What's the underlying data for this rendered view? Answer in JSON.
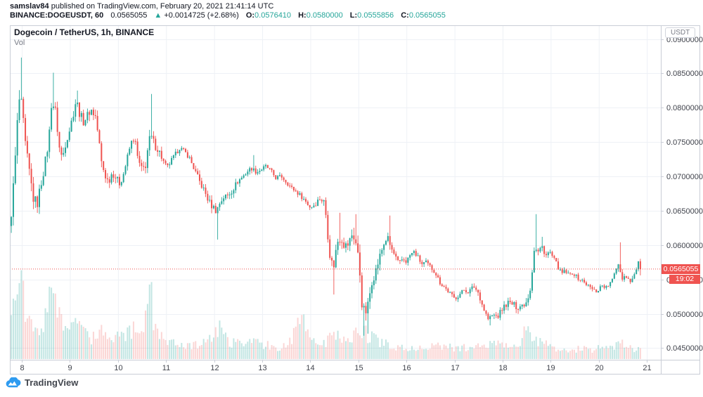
{
  "header": {
    "username": "samslav84",
    "published_suffix": " published on TradingView.com, February 20, 2021 21:41:14 UTC",
    "symbol_interval": "BINANCE:DOGEUSDT, 60",
    "last_price": "0.0565055",
    "arrow": "▲",
    "change": "+0.0014725 (+2.68%)",
    "o_label": "O:",
    "o_value": "0.0576410",
    "h_label": "H:",
    "h_value": "0.0580000",
    "l_label": "L:",
    "l_value": "0.0555856",
    "c_label": "C:",
    "c_value": "0.0565055"
  },
  "legend": {
    "title": "Dogecoin / TetherUS, 1h, BINANCE",
    "indicator": "Vol"
  },
  "axis": {
    "currency_badge": "USDT",
    "price_badge": "0.0565055",
    "countdown": "19:02"
  },
  "footer": {
    "logo_text": "TradingView",
    "logo_icon": "tradingview-cloud-icon"
  },
  "colors": {
    "up": "#26a69a",
    "down": "#ef5350",
    "vol_up": "rgba(38,166,154,0.28)",
    "vol_down": "rgba(239,83,80,0.24)",
    "grid": "#eef1f6",
    "frame": "#c9cdd6",
    "axis_text": "#40434c",
    "price_line": "#ef5350",
    "badge_bg": "#ef5350",
    "logo_blue": "#2e9bf0"
  },
  "chart_data": {
    "type": "candlestick",
    "title": "Dogecoin / TetherUS, 1h, BINANCE",
    "symbol": "BINANCE:DOGEUSDT",
    "interval": "60",
    "candles_per_day": 24,
    "x_axis": {
      "min_day": 7.75,
      "max_day": 21.29,
      "tick_days": [
        8,
        9,
        10,
        11,
        12,
        13,
        14,
        15,
        16,
        17,
        18,
        19,
        20,
        21
      ],
      "tick_labels": [
        "8",
        "9",
        "10",
        "11",
        "12",
        "13",
        "14",
        "15",
        "16",
        "17",
        "18",
        "19",
        "20",
        "21"
      ]
    },
    "y_axis": {
      "min": 0.0433,
      "max": 0.092,
      "ticks": [
        0.09,
        0.085,
        0.08,
        0.075,
        0.07,
        0.065,
        0.06,
        0.055,
        0.05,
        0.045
      ],
      "tick_labels": [
        "0.0900000",
        "0.0850000",
        "0.0800000",
        "0.0750000",
        "0.0700000",
        "0.0650000",
        "0.0600000",
        "0.0550000",
        "0.0500000",
        "0.0450000"
      ]
    },
    "last_price": 0.0565055,
    "last_candle": {
      "open": 0.057641,
      "high": 0.058,
      "low": 0.0555856,
      "close": 0.0565055
    },
    "price_path": [
      [
        7.76,
        0.0622
      ],
      [
        7.82,
        0.066
      ],
      [
        7.88,
        0.0722
      ],
      [
        7.93,
        0.078
      ],
      [
        7.97,
        0.0812
      ],
      [
        8.02,
        0.08
      ],
      [
        8.1,
        0.074
      ],
      [
        8.18,
        0.0705
      ],
      [
        8.26,
        0.0668
      ],
      [
        8.34,
        0.066
      ],
      [
        8.42,
        0.069
      ],
      [
        8.5,
        0.0718
      ],
      [
        8.58,
        0.0752
      ],
      [
        8.64,
        0.081
      ],
      [
        8.72,
        0.0795
      ],
      [
        8.8,
        0.0742
      ],
      [
        8.86,
        0.0726
      ],
      [
        8.94,
        0.0752
      ],
      [
        9.02,
        0.077
      ],
      [
        9.08,
        0.0788
      ],
      [
        9.15,
        0.0812
      ],
      [
        9.22,
        0.0792
      ],
      [
        9.3,
        0.078
      ],
      [
        9.38,
        0.0788
      ],
      [
        9.45,
        0.0798
      ],
      [
        9.55,
        0.0788
      ],
      [
        9.62,
        0.0755
      ],
      [
        9.67,
        0.0722
      ],
      [
        9.75,
        0.0702
      ],
      [
        9.82,
        0.0692
      ],
      [
        9.9,
        0.0706
      ],
      [
        9.98,
        0.0698
      ],
      [
        10.05,
        0.069
      ],
      [
        10.12,
        0.07
      ],
      [
        10.2,
        0.0722
      ],
      [
        10.28,
        0.0746
      ],
      [
        10.36,
        0.0758
      ],
      [
        10.44,
        0.0722
      ],
      [
        10.52,
        0.0708
      ],
      [
        10.6,
        0.0718
      ],
      [
        10.66,
        0.0752
      ],
      [
        10.72,
        0.0756
      ],
      [
        10.8,
        0.0744
      ],
      [
        10.88,
        0.0736
      ],
      [
        10.96,
        0.0722
      ],
      [
        11.04,
        0.0712
      ],
      [
        11.12,
        0.0722
      ],
      [
        11.2,
        0.073
      ],
      [
        11.3,
        0.0742
      ],
      [
        11.4,
        0.0736
      ],
      [
        11.5,
        0.0728
      ],
      [
        11.62,
        0.0708
      ],
      [
        11.72,
        0.0692
      ],
      [
        11.82,
        0.0678
      ],
      [
        11.92,
        0.0662
      ],
      [
        12.0,
        0.0655
      ],
      [
        12.07,
        0.065
      ],
      [
        12.14,
        0.0662
      ],
      [
        12.22,
        0.067
      ],
      [
        12.3,
        0.0672
      ],
      [
        12.4,
        0.068
      ],
      [
        12.5,
        0.0692
      ],
      [
        12.62,
        0.07
      ],
      [
        12.72,
        0.0708
      ],
      [
        12.8,
        0.0712
      ],
      [
        12.9,
        0.0706
      ],
      [
        13.0,
        0.071
      ],
      [
        13.1,
        0.0715
      ],
      [
        13.2,
        0.0708
      ],
      [
        13.3,
        0.0698
      ],
      [
        13.42,
        0.07
      ],
      [
        13.52,
        0.0692
      ],
      [
        13.62,
        0.0684
      ],
      [
        13.72,
        0.0678
      ],
      [
        13.82,
        0.0672
      ],
      [
        13.92,
        0.0664
      ],
      [
        14.02,
        0.0655
      ],
      [
        14.12,
        0.066
      ],
      [
        14.22,
        0.0668
      ],
      [
        14.32,
        0.0662
      ],
      [
        14.42,
        0.0588
      ],
      [
        14.5,
        0.0566
      ],
      [
        14.58,
        0.0605
      ],
      [
        14.66,
        0.0612
      ],
      [
        14.74,
        0.0598
      ],
      [
        14.82,
        0.0602
      ],
      [
        14.9,
        0.0618
      ],
      [
        14.98,
        0.06
      ],
      [
        15.04,
        0.057
      ],
      [
        15.1,
        0.051
      ],
      [
        15.16,
        0.05
      ],
      [
        15.22,
        0.0512
      ],
      [
        15.3,
        0.0548
      ],
      [
        15.38,
        0.0562
      ],
      [
        15.46,
        0.0582
      ],
      [
        15.54,
        0.06
      ],
      [
        15.62,
        0.0612
      ],
      [
        15.7,
        0.0595
      ],
      [
        15.78,
        0.0584
      ],
      [
        15.86,
        0.0572
      ],
      [
        15.94,
        0.058
      ],
      [
        16.02,
        0.0576
      ],
      [
        16.1,
        0.0586
      ],
      [
        16.18,
        0.059
      ],
      [
        16.26,
        0.0582
      ],
      [
        16.34,
        0.0572
      ],
      [
        16.42,
        0.0575
      ],
      [
        16.52,
        0.0568
      ],
      [
        16.62,
        0.056
      ],
      [
        16.72,
        0.0545
      ],
      [
        16.82,
        0.0538
      ],
      [
        16.92,
        0.053
      ],
      [
        17.02,
        0.0522
      ],
      [
        17.12,
        0.0528
      ],
      [
        17.22,
        0.0535
      ],
      [
        17.32,
        0.0532
      ],
      [
        17.42,
        0.054
      ],
      [
        17.52,
        0.053
      ],
      [
        17.62,
        0.0508
      ],
      [
        17.72,
        0.0492
      ],
      [
        17.82,
        0.0498
      ],
      [
        17.92,
        0.0496
      ],
      [
        18.02,
        0.0508
      ],
      [
        18.12,
        0.0516
      ],
      [
        18.22,
        0.0514
      ],
      [
        18.32,
        0.051
      ],
      [
        18.42,
        0.0512
      ],
      [
        18.52,
        0.0518
      ],
      [
        18.6,
        0.0538
      ],
      [
        18.68,
        0.0596
      ],
      [
        18.76,
        0.059
      ],
      [
        18.84,
        0.0598
      ],
      [
        18.92,
        0.0585
      ],
      [
        19.0,
        0.059
      ],
      [
        19.08,
        0.058
      ],
      [
        19.16,
        0.057
      ],
      [
        19.24,
        0.0558
      ],
      [
        19.32,
        0.0562
      ],
      [
        19.4,
        0.0556
      ],
      [
        19.48,
        0.056
      ],
      [
        19.58,
        0.0552
      ],
      [
        19.68,
        0.0548
      ],
      [
        19.78,
        0.0542
      ],
      [
        19.88,
        0.0536
      ],
      [
        19.98,
        0.0532
      ],
      [
        20.08,
        0.0542
      ],
      [
        20.18,
        0.0538
      ],
      [
        20.3,
        0.0548
      ],
      [
        20.42,
        0.0576
      ],
      [
        20.5,
        0.0552
      ],
      [
        20.58,
        0.0556
      ],
      [
        20.66,
        0.0548
      ],
      [
        20.74,
        0.0552
      ],
      [
        20.82,
        0.057
      ],
      [
        20.88,
        0.0576
      ]
    ],
    "volatility_path": [
      [
        7.76,
        0.0018
      ],
      [
        8.0,
        0.0022
      ],
      [
        8.3,
        0.0016
      ],
      [
        8.7,
        0.0014
      ],
      [
        9.0,
        0.0012
      ],
      [
        9.6,
        0.0014
      ],
      [
        10.0,
        0.001
      ],
      [
        10.66,
        0.0014
      ],
      [
        11.0,
        0.0008
      ],
      [
        11.5,
        0.0007
      ],
      [
        12.05,
        0.0012
      ],
      [
        12.5,
        0.0008
      ],
      [
        13.0,
        0.0006
      ],
      [
        13.8,
        0.0006
      ],
      [
        14.45,
        0.0012
      ],
      [
        15.1,
        0.0018
      ],
      [
        15.5,
        0.0012
      ],
      [
        16.0,
        0.0007
      ],
      [
        16.8,
        0.0006
      ],
      [
        17.7,
        0.0008
      ],
      [
        18.5,
        0.001
      ],
      [
        18.7,
        0.0009
      ],
      [
        19.3,
        0.0006
      ],
      [
        20.0,
        0.0005
      ],
      [
        20.45,
        0.0008
      ],
      [
        20.88,
        0.0005
      ]
    ],
    "wick_events": [
      [
        7.97,
        0.0873
      ],
      [
        8.64,
        0.0851
      ],
      [
        9.15,
        0.0825
      ],
      [
        10.66,
        0.082
      ],
      [
        12.07,
        0.0608
      ],
      [
        12.79,
        0.0731
      ],
      [
        14.46,
        0.0528
      ],
      [
        14.6,
        0.0647
      ],
      [
        14.92,
        0.0645
      ],
      [
        15.1,
        0.0468
      ],
      [
        15.16,
        0.0471
      ],
      [
        15.62,
        0.0643
      ],
      [
        17.7,
        0.0483
      ],
      [
        18.68,
        0.0645
      ],
      [
        18.8,
        0.0612
      ],
      [
        20.42,
        0.0604
      ]
    ],
    "volume_path": [
      [
        7.78,
        50
      ],
      [
        7.85,
        65
      ],
      [
        7.93,
        95
      ],
      [
        8.0,
        72
      ],
      [
        8.08,
        48
      ],
      [
        8.2,
        34
      ],
      [
        8.34,
        30
      ],
      [
        8.45,
        44
      ],
      [
        8.58,
        70
      ],
      [
        8.64,
        90
      ],
      [
        8.75,
        48
      ],
      [
        8.9,
        34
      ],
      [
        9.05,
        36
      ],
      [
        9.15,
        44
      ],
      [
        9.3,
        30
      ],
      [
        9.45,
        26
      ],
      [
        9.62,
        36
      ],
      [
        9.8,
        24
      ],
      [
        10.0,
        26
      ],
      [
        10.2,
        30
      ],
      [
        10.36,
        36
      ],
      [
        10.5,
        28
      ],
      [
        10.66,
        90
      ],
      [
        10.74,
        38
      ],
      [
        10.9,
        24
      ],
      [
        11.1,
        20
      ],
      [
        11.3,
        17
      ],
      [
        11.5,
        15
      ],
      [
        11.7,
        18
      ],
      [
        11.9,
        22
      ],
      [
        12.05,
        40
      ],
      [
        12.2,
        24
      ],
      [
        12.4,
        18
      ],
      [
        12.6,
        20
      ],
      [
        12.8,
        24
      ],
      [
        13.0,
        17
      ],
      [
        13.2,
        15
      ],
      [
        13.5,
        14
      ],
      [
        13.84,
        55
      ],
      [
        14.0,
        22
      ],
      [
        14.2,
        16
      ],
      [
        14.42,
        28
      ],
      [
        14.6,
        24
      ],
      [
        14.8,
        20
      ],
      [
        15.02,
        34
      ],
      [
        15.12,
        30
      ],
      [
        15.3,
        24
      ],
      [
        15.5,
        20
      ],
      [
        15.7,
        15
      ],
      [
        15.9,
        13
      ],
      [
        16.1,
        12
      ],
      [
        16.3,
        13
      ],
      [
        16.5,
        14
      ],
      [
        16.7,
        15
      ],
      [
        16.9,
        14
      ],
      [
        17.1,
        13
      ],
      [
        17.3,
        14
      ],
      [
        17.5,
        14
      ],
      [
        17.7,
        20
      ],
      [
        17.9,
        17
      ],
      [
        18.1,
        13
      ],
      [
        18.3,
        13
      ],
      [
        18.5,
        42
      ],
      [
        18.6,
        26
      ],
      [
        18.75,
        20
      ],
      [
        18.9,
        16
      ],
      [
        19.05,
        14
      ],
      [
        19.2,
        12
      ],
      [
        19.4,
        11
      ],
      [
        19.6,
        12
      ],
      [
        19.8,
        11
      ],
      [
        20.0,
        13
      ],
      [
        20.15,
        15
      ],
      [
        20.3,
        17
      ],
      [
        20.42,
        26
      ],
      [
        20.55,
        12
      ],
      [
        20.7,
        13
      ],
      [
        20.88,
        10
      ]
    ]
  }
}
